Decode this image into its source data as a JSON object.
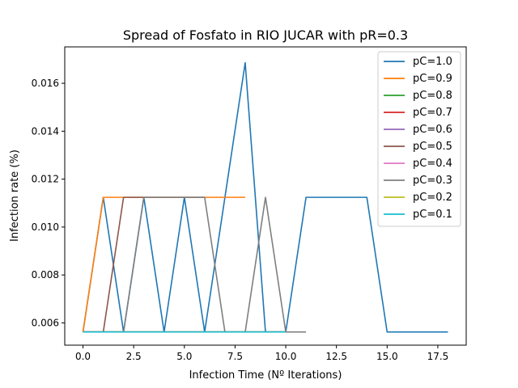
{
  "chart_data": {
    "type": "line",
    "title": "Spread of Fosfato in RIO JUCAR with pR=0.3",
    "xlabel": "Infection Time (Nº Iterations)",
    "ylabel": "Infection rate (%)",
    "xlim": [
      -0.9,
      18.9
    ],
    "ylim": [
      0.00507,
      0.01752
    ],
    "xticks": [
      0,
      2.5,
      5,
      7.5,
      10,
      12.5,
      15,
      17.5
    ],
    "xtick_labels": [
      "0.0",
      "2.5",
      "5.0",
      "7.5",
      "10.0",
      "12.5",
      "15.0",
      "17.5"
    ],
    "yticks": [
      0.006,
      0.008,
      0.01,
      0.012,
      0.014,
      0.016
    ],
    "ytick_labels": [
      "0.006",
      "0.008",
      "0.010",
      "0.012",
      "0.014",
      "0.016"
    ],
    "grid": false,
    "legend_position": "top-right",
    "series": [
      {
        "name": "pC=1.0",
        "color": "#1f77b4",
        "x": [
          0,
          1,
          2,
          3,
          4,
          5,
          6,
          7,
          8,
          9,
          10,
          11,
          12,
          13,
          14,
          15,
          16,
          17,
          18
        ],
        "y": [
          0.00562,
          0.01124,
          0.00562,
          0.01124,
          0.00562,
          0.01124,
          0.00562,
          0.01124,
          0.01686,
          0.00562,
          0.00562,
          0.01124,
          0.01124,
          0.01124,
          0.01124,
          0.00562,
          0.00562,
          0.00562,
          0.00562
        ]
      },
      {
        "name": "pC=0.9",
        "color": "#ff7f0e",
        "x": [
          0,
          1,
          2,
          3,
          4,
          5,
          6,
          7,
          8
        ],
        "y": [
          0.00562,
          0.01124,
          0.01124,
          0.01124,
          0.01124,
          0.01124,
          0.01124,
          0.01124,
          0.01124
        ]
      },
      {
        "name": "pC=0.8",
        "color": "#2ca02c",
        "x": [
          0,
          1,
          2,
          3,
          4,
          5,
          6,
          7,
          8,
          9,
          10
        ],
        "y": [
          0.00562,
          0.00562,
          0.00562,
          0.00562,
          0.00562,
          0.00562,
          0.00562,
          0.00562,
          0.00562,
          0.00562,
          0.00562
        ]
      },
      {
        "name": "pC=0.7",
        "color": "#d62728",
        "x": [
          0,
          1,
          2,
          3,
          4,
          5,
          6,
          7,
          8,
          9,
          10
        ],
        "y": [
          0.00562,
          0.00562,
          0.00562,
          0.00562,
          0.00562,
          0.00562,
          0.00562,
          0.00562,
          0.00562,
          0.00562,
          0.00562
        ]
      },
      {
        "name": "pC=0.6",
        "color": "#9467bd",
        "x": [
          0,
          1,
          2,
          3,
          4,
          5,
          6,
          7,
          8,
          9,
          10
        ],
        "y": [
          0.00562,
          0.00562,
          0.00562,
          0.00562,
          0.00562,
          0.00562,
          0.00562,
          0.00562,
          0.00562,
          0.00562,
          0.00562
        ]
      },
      {
        "name": "pC=0.5",
        "color": "#8c564b",
        "x": [
          0,
          1,
          2,
          3,
          4,
          5,
          6
        ],
        "y": [
          0.00562,
          0.00562,
          0.01124,
          0.01124,
          0.01124,
          0.01124,
          0.01124
        ]
      },
      {
        "name": "pC=0.4",
        "color": "#e377c2",
        "x": [
          0,
          1,
          2,
          3,
          4,
          5,
          6,
          7,
          8,
          9,
          10
        ],
        "y": [
          0.00562,
          0.00562,
          0.00562,
          0.00562,
          0.00562,
          0.00562,
          0.00562,
          0.00562,
          0.00562,
          0.00562,
          0.00562
        ]
      },
      {
        "name": "pC=0.3",
        "color": "#7f7f7f",
        "x": [
          0,
          1,
          2,
          3,
          4,
          5,
          6,
          7,
          8,
          9,
          10,
          11
        ],
        "y": [
          0.00562,
          0.00562,
          0.00562,
          0.01124,
          0.01124,
          0.01124,
          0.01124,
          0.00562,
          0.00562,
          0.01124,
          0.00562,
          0.00562
        ]
      },
      {
        "name": "pC=0.2",
        "color": "#bcbd22",
        "x": [
          0,
          1,
          2,
          3,
          4,
          5,
          6,
          7,
          8,
          9,
          10
        ],
        "y": [
          0.00562,
          0.00562,
          0.00562,
          0.00562,
          0.00562,
          0.00562,
          0.00562,
          0.00562,
          0.00562,
          0.00562,
          0.00562
        ]
      },
      {
        "name": "pC=0.1",
        "color": "#17becf",
        "x": [
          0,
          1,
          2,
          3,
          4,
          5,
          6,
          7,
          8,
          9,
          10
        ],
        "y": [
          0.00562,
          0.00562,
          0.00562,
          0.00562,
          0.00562,
          0.00562,
          0.00562,
          0.00562,
          0.00562,
          0.00562,
          0.00562
        ]
      }
    ]
  }
}
